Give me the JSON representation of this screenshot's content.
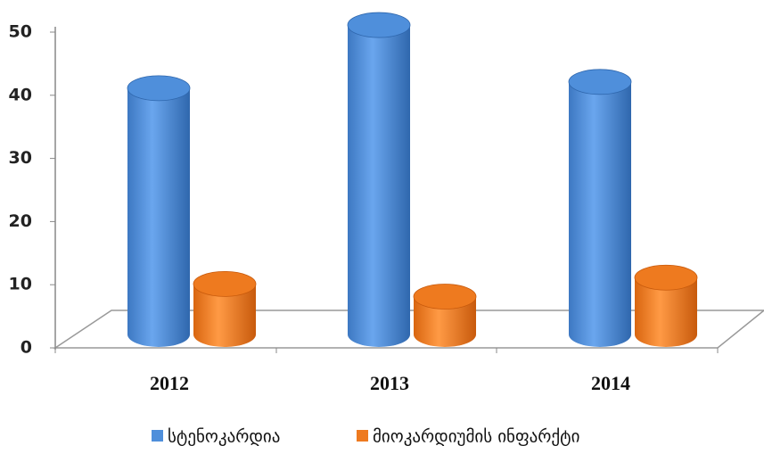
{
  "chart_data": {
    "type": "bar3d",
    "categories": [
      "2012",
      "2013",
      "2014"
    ],
    "series": [
      {
        "name": "სტენოკარდია",
        "color": "#4f8fdb",
        "values": [
          39,
          49,
          40
        ]
      },
      {
        "name": "მიოკარდიუმის ინფარქტი",
        "color": "#ee7a1f",
        "values": [
          8,
          6,
          9
        ]
      }
    ],
    "ylim": [
      0,
      50
    ],
    "yticks": [
      0,
      10,
      20,
      30,
      40,
      50
    ],
    "legend": "bottom"
  }
}
